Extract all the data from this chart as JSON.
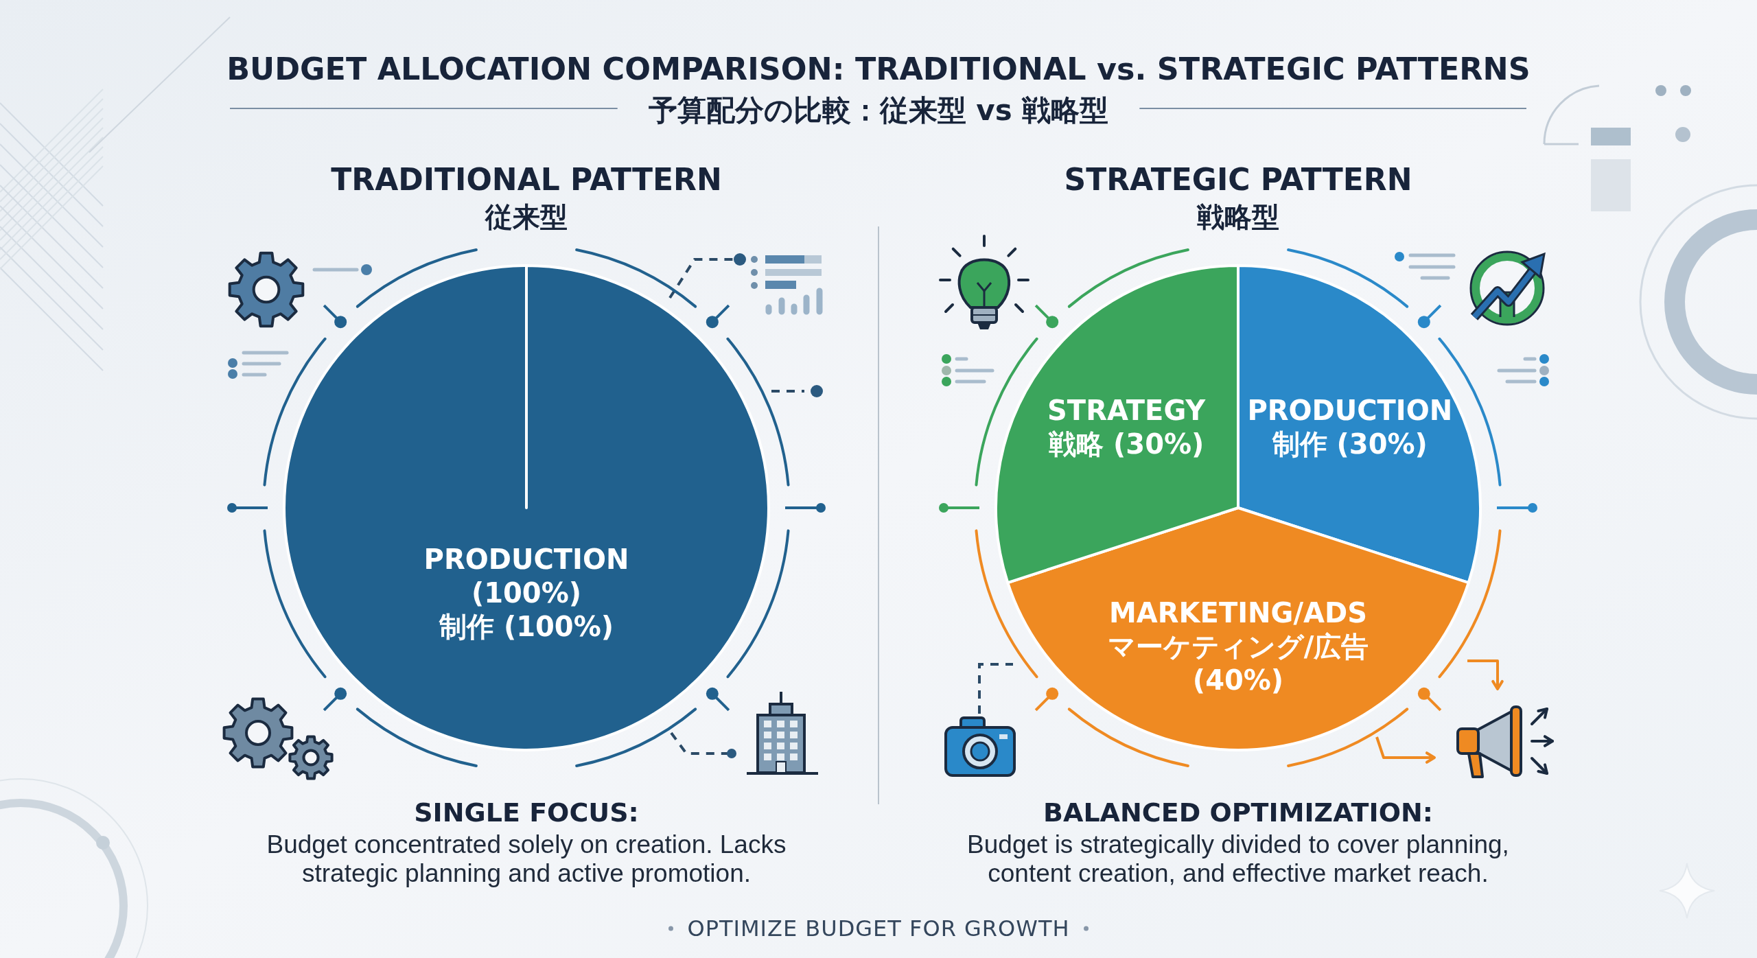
{
  "chart_data": [
    {
      "type": "other",
      "title": "BUDGET ALLOCATION COMPARISON: TRADITIONAL vs. STRATEGIC PATTERNS",
      "subtitle": "予算配分の比較：従来型 vs 戦略型"
    },
    {
      "type": "pie",
      "title": "TRADITIONAL PATTERN",
      "subtitle": "従来型",
      "categories": [
        "PRODUCTION\n(100%)\n制作 (100%)"
      ],
      "values": [
        100
      ],
      "colors": [
        "#21618e"
      ],
      "annotations": [
        "SINGLE FOCUS:",
        "Budget concentrated solely on creation. Lacks strategic planning and active promotion."
      ]
    },
    {
      "type": "pie",
      "title": "STRATEGIC PATTERN",
      "subtitle": "戦略型",
      "categories": [
        "PRODUCTION\n制作 (30%)",
        "MARKETING/ADS\nマーケティング/広告\n(40%)",
        "STRATEGY\n戦略 (30%)"
      ],
      "values": [
        30,
        40,
        30
      ],
      "colors": [
        "#2a89c9",
        "#ef8a22",
        "#3ba55c"
      ],
      "annotations": [
        "BALANCED OPTIMIZATION:",
        "Budget is strategically divided to cover planning, content creation, and effective market reach."
      ]
    },
    {
      "type": "other",
      "annotations": [
        "OPTIMIZE BUDGET FOR GROWTH"
      ]
    }
  ]
}
